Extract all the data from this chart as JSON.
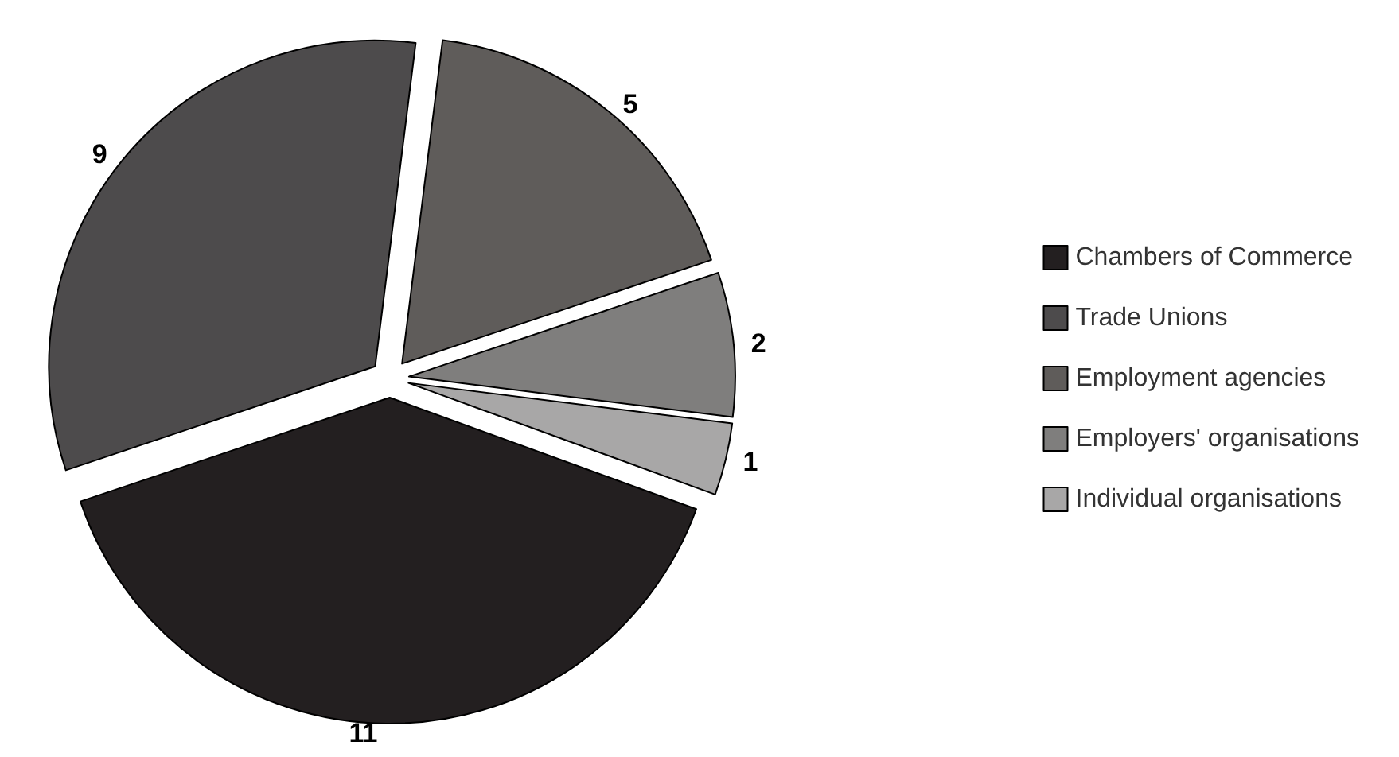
{
  "chart_data": {
    "type": "pie",
    "categories": [
      "Chambers of Commerce",
      "Trade Unions",
      "Employment agencies",
      "Employers' organisations",
      "Individual organisations"
    ],
    "values": [
      11,
      9,
      5,
      2,
      1
    ],
    "colors": [
      "#231f20",
      "#4d4b4c",
      "#5f5c5a",
      "#7f7e7d",
      "#a8a7a7"
    ],
    "data_labels": true,
    "legend": "right"
  }
}
